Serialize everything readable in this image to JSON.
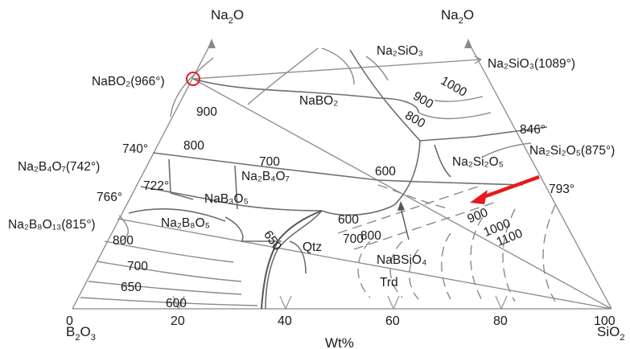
{
  "apex_labels": {
    "left_top": {
      "base": "Na",
      "sub": "2",
      "tail": "O"
    },
    "right_top": {
      "base": "Na",
      "sub": "2",
      "tail": "O"
    },
    "bottom_left": {
      "base": "B",
      "sub": "2",
      "tail": "O",
      "sub2": "3"
    },
    "bottom_right": {
      "base": "SiO",
      "sub": "2"
    }
  },
  "axis": {
    "title": "Wt%",
    "ticks": [
      "0",
      "20",
      "40",
      "60",
      "80",
      "100"
    ]
  },
  "compound_labels": {
    "nabo2_point": "NaBO₂(966°)",
    "na2sio3_point": "Na₂SiO₃(1089°)",
    "na2si2o5_point": "Na₂Si₂O₅(875°)",
    "na2b4o7_point": "Na₂B₄O₇(742°)",
    "na2b8o13_point": "Na₂B₈O₁₃(815°)"
  },
  "field_labels": {
    "na2sio3": "Na₂SiO₃",
    "nabo2": "NaBO₂",
    "na2b4o7": "Na₂B₄O₇",
    "nab3o5": "NaB₃O₅",
    "na2b8o5": "Na₂B₈O₅",
    "na2si2o5": "Na₂Si₂O₅",
    "qtz": "Qtz",
    "nabsio4": "NaBSiO₄",
    "trd": "Trd"
  },
  "temperature_labels": {
    "t740": "740°",
    "t722": "722°",
    "t766": "766°",
    "t846": "846°",
    "t793": "793°"
  },
  "isotherm_labels": {
    "i900_left": "900",
    "i800_left": "800",
    "i700_mid": "700",
    "i600_mid": "600",
    "i1000_top": "1000",
    "i900_top": "900",
    "i800_top": "800",
    "i600_low": "600",
    "i700_low": "700",
    "i800_low": "800",
    "i650_low": "650",
    "i800_bl": "800",
    "i700_bl": "700",
    "i650_bl": "650",
    "i600_bl": "600",
    "i900_r": "900",
    "i1000_r": "1000",
    "i1100_r": "1100"
  },
  "colors": {
    "arrow": "#e8191c",
    "marker_circle": "#e8191c",
    "lines": "#7a7a7a"
  }
}
